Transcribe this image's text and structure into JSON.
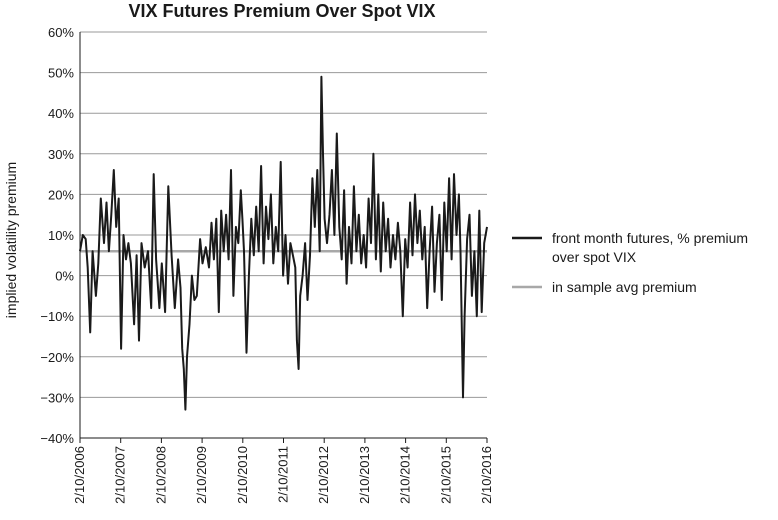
{
  "chart_data": {
    "type": "line",
    "title": "VIX Futures Premium Over Spot VIX",
    "ylabel": "implied volatility premium",
    "xlabel": "",
    "ylim": [
      -40,
      60
    ],
    "yticks": [
      -40,
      -30,
      -20,
      -10,
      0,
      10,
      20,
      30,
      40,
      50,
      60
    ],
    "ytick_labels": [
      "−40%",
      "−30%",
      "−20%",
      "−10%",
      "0%",
      "10%",
      "20%",
      "30%",
      "40%",
      "50%",
      "60%"
    ],
    "xlim": [
      2006.11,
      2016.11
    ],
    "xticks": [
      2006.11,
      2007.11,
      2008.11,
      2009.11,
      2010.11,
      2011.11,
      2012.11,
      2013.11,
      2014.11,
      2015.11,
      2016.11
    ],
    "xtick_labels": [
      "2/10/2006",
      "2/10/2007",
      "2/10/2008",
      "2/10/2009",
      "2/10/2010",
      "2/10/2011",
      "2/10/2012",
      "2/10/2013",
      "2/10/2014",
      "2/10/2015",
      "2/10/2016"
    ],
    "grid": "horizontal",
    "legend_position": "right",
    "colors": {
      "series": "#1a1a1a",
      "average": "#a8a8a8",
      "grid": "#9a9a9a"
    },
    "series": [
      {
        "name": "front month futures, % premium over spot VIX",
        "points": [
          [
            2006.11,
            6
          ],
          [
            2006.18,
            10
          ],
          [
            2006.25,
            9
          ],
          [
            2006.3,
            2
          ],
          [
            2006.36,
            -14
          ],
          [
            2006.42,
            6
          ],
          [
            2006.5,
            -5
          ],
          [
            2006.56,
            3
          ],
          [
            2006.62,
            19
          ],
          [
            2006.7,
            8
          ],
          [
            2006.76,
            18
          ],
          [
            2006.82,
            6
          ],
          [
            2006.88,
            15
          ],
          [
            2006.94,
            26
          ],
          [
            2007.0,
            12
          ],
          [
            2007.06,
            19
          ],
          [
            2007.12,
            -18
          ],
          [
            2007.18,
            10
          ],
          [
            2007.24,
            4
          ],
          [
            2007.3,
            8
          ],
          [
            2007.36,
            3
          ],
          [
            2007.44,
            -12
          ],
          [
            2007.5,
            5
          ],
          [
            2007.56,
            -16
          ],
          [
            2007.62,
            8
          ],
          [
            2007.7,
            2
          ],
          [
            2007.78,
            6
          ],
          [
            2007.86,
            -8
          ],
          [
            2007.92,
            25
          ],
          [
            2007.98,
            4
          ],
          [
            2008.06,
            -8
          ],
          [
            2008.12,
            3
          ],
          [
            2008.2,
            -9
          ],
          [
            2008.28,
            22
          ],
          [
            2008.36,
            5
          ],
          [
            2008.44,
            -8
          ],
          [
            2008.52,
            4
          ],
          [
            2008.58,
            -3
          ],
          [
            2008.62,
            -18
          ],
          [
            2008.66,
            -23
          ],
          [
            2008.7,
            -33
          ],
          [
            2008.74,
            -20
          ],
          [
            2008.8,
            -12
          ],
          [
            2008.86,
            0
          ],
          [
            2008.92,
            -6
          ],
          [
            2008.98,
            -5
          ],
          [
            2009.06,
            9
          ],
          [
            2009.12,
            3
          ],
          [
            2009.2,
            7
          ],
          [
            2009.28,
            2
          ],
          [
            2009.34,
            13
          ],
          [
            2009.4,
            4
          ],
          [
            2009.46,
            14
          ],
          [
            2009.52,
            -9
          ],
          [
            2009.58,
            16
          ],
          [
            2009.64,
            6
          ],
          [
            2009.7,
            15
          ],
          [
            2009.76,
            4
          ],
          [
            2009.82,
            26
          ],
          [
            2009.88,
            -5
          ],
          [
            2009.94,
            12
          ],
          [
            2010.0,
            8
          ],
          [
            2010.06,
            21
          ],
          [
            2010.1,
            14
          ],
          [
            2010.14,
            6
          ],
          [
            2010.2,
            -19
          ],
          [
            2010.26,
            0
          ],
          [
            2010.32,
            14
          ],
          [
            2010.38,
            5
          ],
          [
            2010.44,
            17
          ],
          [
            2010.5,
            6
          ],
          [
            2010.56,
            27
          ],
          [
            2010.62,
            3
          ],
          [
            2010.68,
            17
          ],
          [
            2010.74,
            9
          ],
          [
            2010.8,
            20
          ],
          [
            2010.86,
            3
          ],
          [
            2010.92,
            12
          ],
          [
            2010.98,
            6
          ],
          [
            2011.04,
            28
          ],
          [
            2011.1,
            0
          ],
          [
            2011.16,
            10
          ],
          [
            2011.22,
            -2
          ],
          [
            2011.28,
            8
          ],
          [
            2011.34,
            5
          ],
          [
            2011.4,
            2
          ],
          [
            2011.44,
            -16
          ],
          [
            2011.48,
            -23
          ],
          [
            2011.52,
            -5
          ],
          [
            2011.58,
            0
          ],
          [
            2011.64,
            8
          ],
          [
            2011.7,
            -6
          ],
          [
            2011.76,
            5
          ],
          [
            2011.82,
            24
          ],
          [
            2011.88,
            12
          ],
          [
            2011.94,
            26
          ],
          [
            2012.0,
            6
          ],
          [
            2012.04,
            49
          ],
          [
            2012.08,
            30
          ],
          [
            2012.12,
            14
          ],
          [
            2012.18,
            8
          ],
          [
            2012.24,
            15
          ],
          [
            2012.3,
            26
          ],
          [
            2012.36,
            10
          ],
          [
            2012.42,
            35
          ],
          [
            2012.48,
            12
          ],
          [
            2012.54,
            4
          ],
          [
            2012.6,
            21
          ],
          [
            2012.66,
            -2
          ],
          [
            2012.72,
            12
          ],
          [
            2012.78,
            3
          ],
          [
            2012.84,
            22
          ],
          [
            2012.9,
            6
          ],
          [
            2012.96,
            15
          ],
          [
            2013.02,
            3
          ],
          [
            2013.08,
            10
          ],
          [
            2013.14,
            2
          ],
          [
            2013.2,
            19
          ],
          [
            2013.26,
            8
          ],
          [
            2013.32,
            30
          ],
          [
            2013.38,
            4
          ],
          [
            2013.44,
            20
          ],
          [
            2013.5,
            1
          ],
          [
            2013.56,
            18
          ],
          [
            2013.62,
            6
          ],
          [
            2013.68,
            14
          ],
          [
            2013.74,
            2
          ],
          [
            2013.8,
            10
          ],
          [
            2013.86,
            4
          ],
          [
            2013.92,
            13
          ],
          [
            2013.98,
            6
          ],
          [
            2014.04,
            -10
          ],
          [
            2014.1,
            9
          ],
          [
            2014.16,
            2
          ],
          [
            2014.22,
            18
          ],
          [
            2014.28,
            5
          ],
          [
            2014.34,
            20
          ],
          [
            2014.4,
            8
          ],
          [
            2014.46,
            16
          ],
          [
            2014.52,
            4
          ],
          [
            2014.58,
            12
          ],
          [
            2014.64,
            -8
          ],
          [
            2014.7,
            6
          ],
          [
            2014.76,
            17
          ],
          [
            2014.82,
            -4
          ],
          [
            2014.88,
            8
          ],
          [
            2014.94,
            15
          ],
          [
            2015.0,
            -6
          ],
          [
            2015.06,
            18
          ],
          [
            2015.12,
            6
          ],
          [
            2015.18,
            24
          ],
          [
            2015.24,
            4
          ],
          [
            2015.3,
            25
          ],
          [
            2015.36,
            10
          ],
          [
            2015.42,
            20
          ],
          [
            2015.46,
            6
          ],
          [
            2015.52,
            -30
          ],
          [
            2015.56,
            -10
          ],
          [
            2015.62,
            9
          ],
          [
            2015.68,
            15
          ],
          [
            2015.74,
            -5
          ],
          [
            2015.8,
            6
          ],
          [
            2015.86,
            -10
          ],
          [
            2015.92,
            16
          ],
          [
            2015.98,
            -9
          ],
          [
            2016.04,
            8
          ],
          [
            2016.11,
            12
          ]
        ]
      },
      {
        "name": "in sample avg premium",
        "points": [
          [
            2006.11,
            6
          ],
          [
            2016.11,
            6
          ]
        ]
      }
    ]
  }
}
